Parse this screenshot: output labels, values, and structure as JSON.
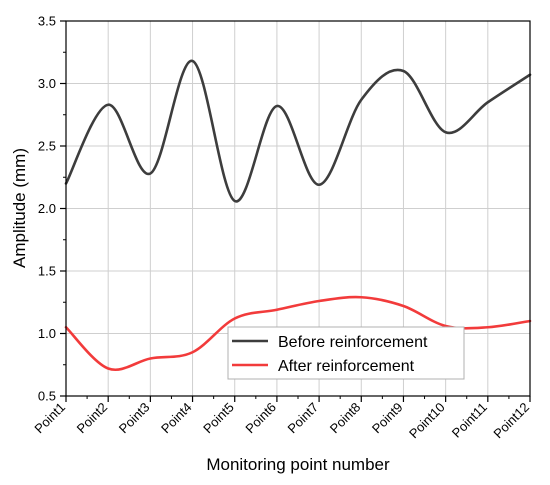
{
  "chart_data": {
    "type": "line",
    "categories": [
      "Point1",
      "Point2",
      "Point3",
      "Point4",
      "Point5",
      "Point6",
      "Point7",
      "Point8",
      "Point9",
      "Point10",
      "Point11",
      "Point12"
    ],
    "series": [
      {
        "name": "Before reinforcement",
        "color": "#3d3d3d",
        "values": [
          2.2,
          2.83,
          2.28,
          3.18,
          2.06,
          2.82,
          2.19,
          2.87,
          3.1,
          2.61,
          2.85,
          3.07
        ]
      },
      {
        "name": "After reinforcement",
        "color": "#f23b3b",
        "values": [
          1.05,
          0.72,
          0.8,
          0.85,
          1.12,
          1.19,
          1.26,
          1.29,
          1.22,
          1.06,
          1.05,
          1.1
        ]
      }
    ],
    "xlabel": "Monitoring point number",
    "ylabel": "Amplitude (mm)",
    "ylim": [
      0.5,
      3.5
    ],
    "yticks": [
      "0.5",
      "1.0",
      "1.5",
      "2.0",
      "2.5",
      "3.0",
      "3.5"
    ],
    "grid": true,
    "legend_position": "lower-center"
  }
}
